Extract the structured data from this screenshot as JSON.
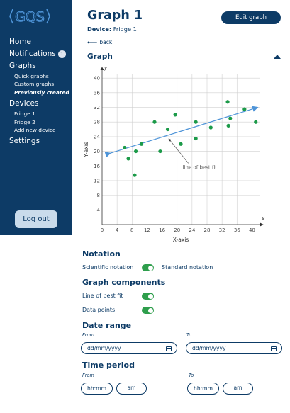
{
  "app": {
    "logo_text": "GQS"
  },
  "sidebar": {
    "items": [
      {
        "label": "Home"
      },
      {
        "label": "Notifications",
        "badge": "1"
      },
      {
        "label": "Graphs",
        "children": [
          {
            "label": "Quick graphs"
          },
          {
            "label": "Custom graphs"
          },
          {
            "label": "Previously created",
            "active": true
          }
        ]
      },
      {
        "label": "Devices",
        "children": [
          {
            "label": "Fridge 1"
          },
          {
            "label": "Fridge 2"
          },
          {
            "label": "Add new device"
          }
        ]
      },
      {
        "label": "Settings"
      }
    ],
    "logout_label": "Log out"
  },
  "header": {
    "title": "Graph 1",
    "device_label": "Device:",
    "device_value": "Fridge 1",
    "edit_label": "Edit graph",
    "back_label": "back"
  },
  "graph_section": {
    "title": "Graph"
  },
  "chart_data": {
    "type": "scatter",
    "xlabel": "X-axis",
    "ylabel": "Y-axis",
    "x_arrow_label": "x",
    "y_arrow_label": "y",
    "xlim": [
      0,
      42
    ],
    "ylim": [
      0,
      41
    ],
    "xticks": [
      0,
      4,
      8,
      12,
      16,
      20,
      24,
      28,
      32,
      36,
      40
    ],
    "yticks": [
      4,
      8,
      12,
      16,
      20,
      24,
      28,
      32,
      36,
      40
    ],
    "grid": true,
    "points": [
      {
        "x": 6,
        "y": 21
      },
      {
        "x": 7,
        "y": 18
      },
      {
        "x": 9,
        "y": 20
      },
      {
        "x": 8.7,
        "y": 13.5
      },
      {
        "x": 10.5,
        "y": 22
      },
      {
        "x": 14,
        "y": 28
      },
      {
        "x": 15.5,
        "y": 20
      },
      {
        "x": 17.5,
        "y": 26
      },
      {
        "x": 19.5,
        "y": 30
      },
      {
        "x": 21,
        "y": 22
      },
      {
        "x": 25,
        "y": 28
      },
      {
        "x": 25,
        "y": 23.5
      },
      {
        "x": 29,
        "y": 26.5
      },
      {
        "x": 33.5,
        "y": 33.5
      },
      {
        "x": 33.7,
        "y": 27
      },
      {
        "x": 34.2,
        "y": 29
      },
      {
        "x": 38,
        "y": 31.5
      },
      {
        "x": 41,
        "y": 28
      }
    ],
    "line_of_best_fit": {
      "x": [
        2.2,
        41.5
      ],
      "y": [
        19.5,
        32
      ]
    },
    "annotation": {
      "text": "line of best fit",
      "x": 21.5,
      "y": 15.2,
      "arrow_to_x": 17.8,
      "arrow_to_y": 23.4
    },
    "colors": {
      "points": "#1c9a49",
      "line": "#4e94d8",
      "grid": "#d0d0d0",
      "axis": "#333333"
    }
  },
  "notation": {
    "title": "Notation",
    "left_label": "Scientific notation",
    "right_label": "Standard notation"
  },
  "components": {
    "title": "Graph components",
    "items": [
      {
        "label": "Line of best fit"
      },
      {
        "label": "Data points"
      }
    ]
  },
  "date_range": {
    "title": "Date range",
    "from_label": "From",
    "to_label": "To",
    "placeholder": "dd/mm/yyyy"
  },
  "time_period": {
    "title": "Time period",
    "from_label": "From",
    "to_label": "To",
    "time_placeholder": "hh:mm",
    "ampm_value": "am"
  },
  "colors": {
    "brand_navy": "#0d3b66",
    "toggle_on": "#2e9e4c",
    "logout_bg": "#c9dbeb"
  }
}
